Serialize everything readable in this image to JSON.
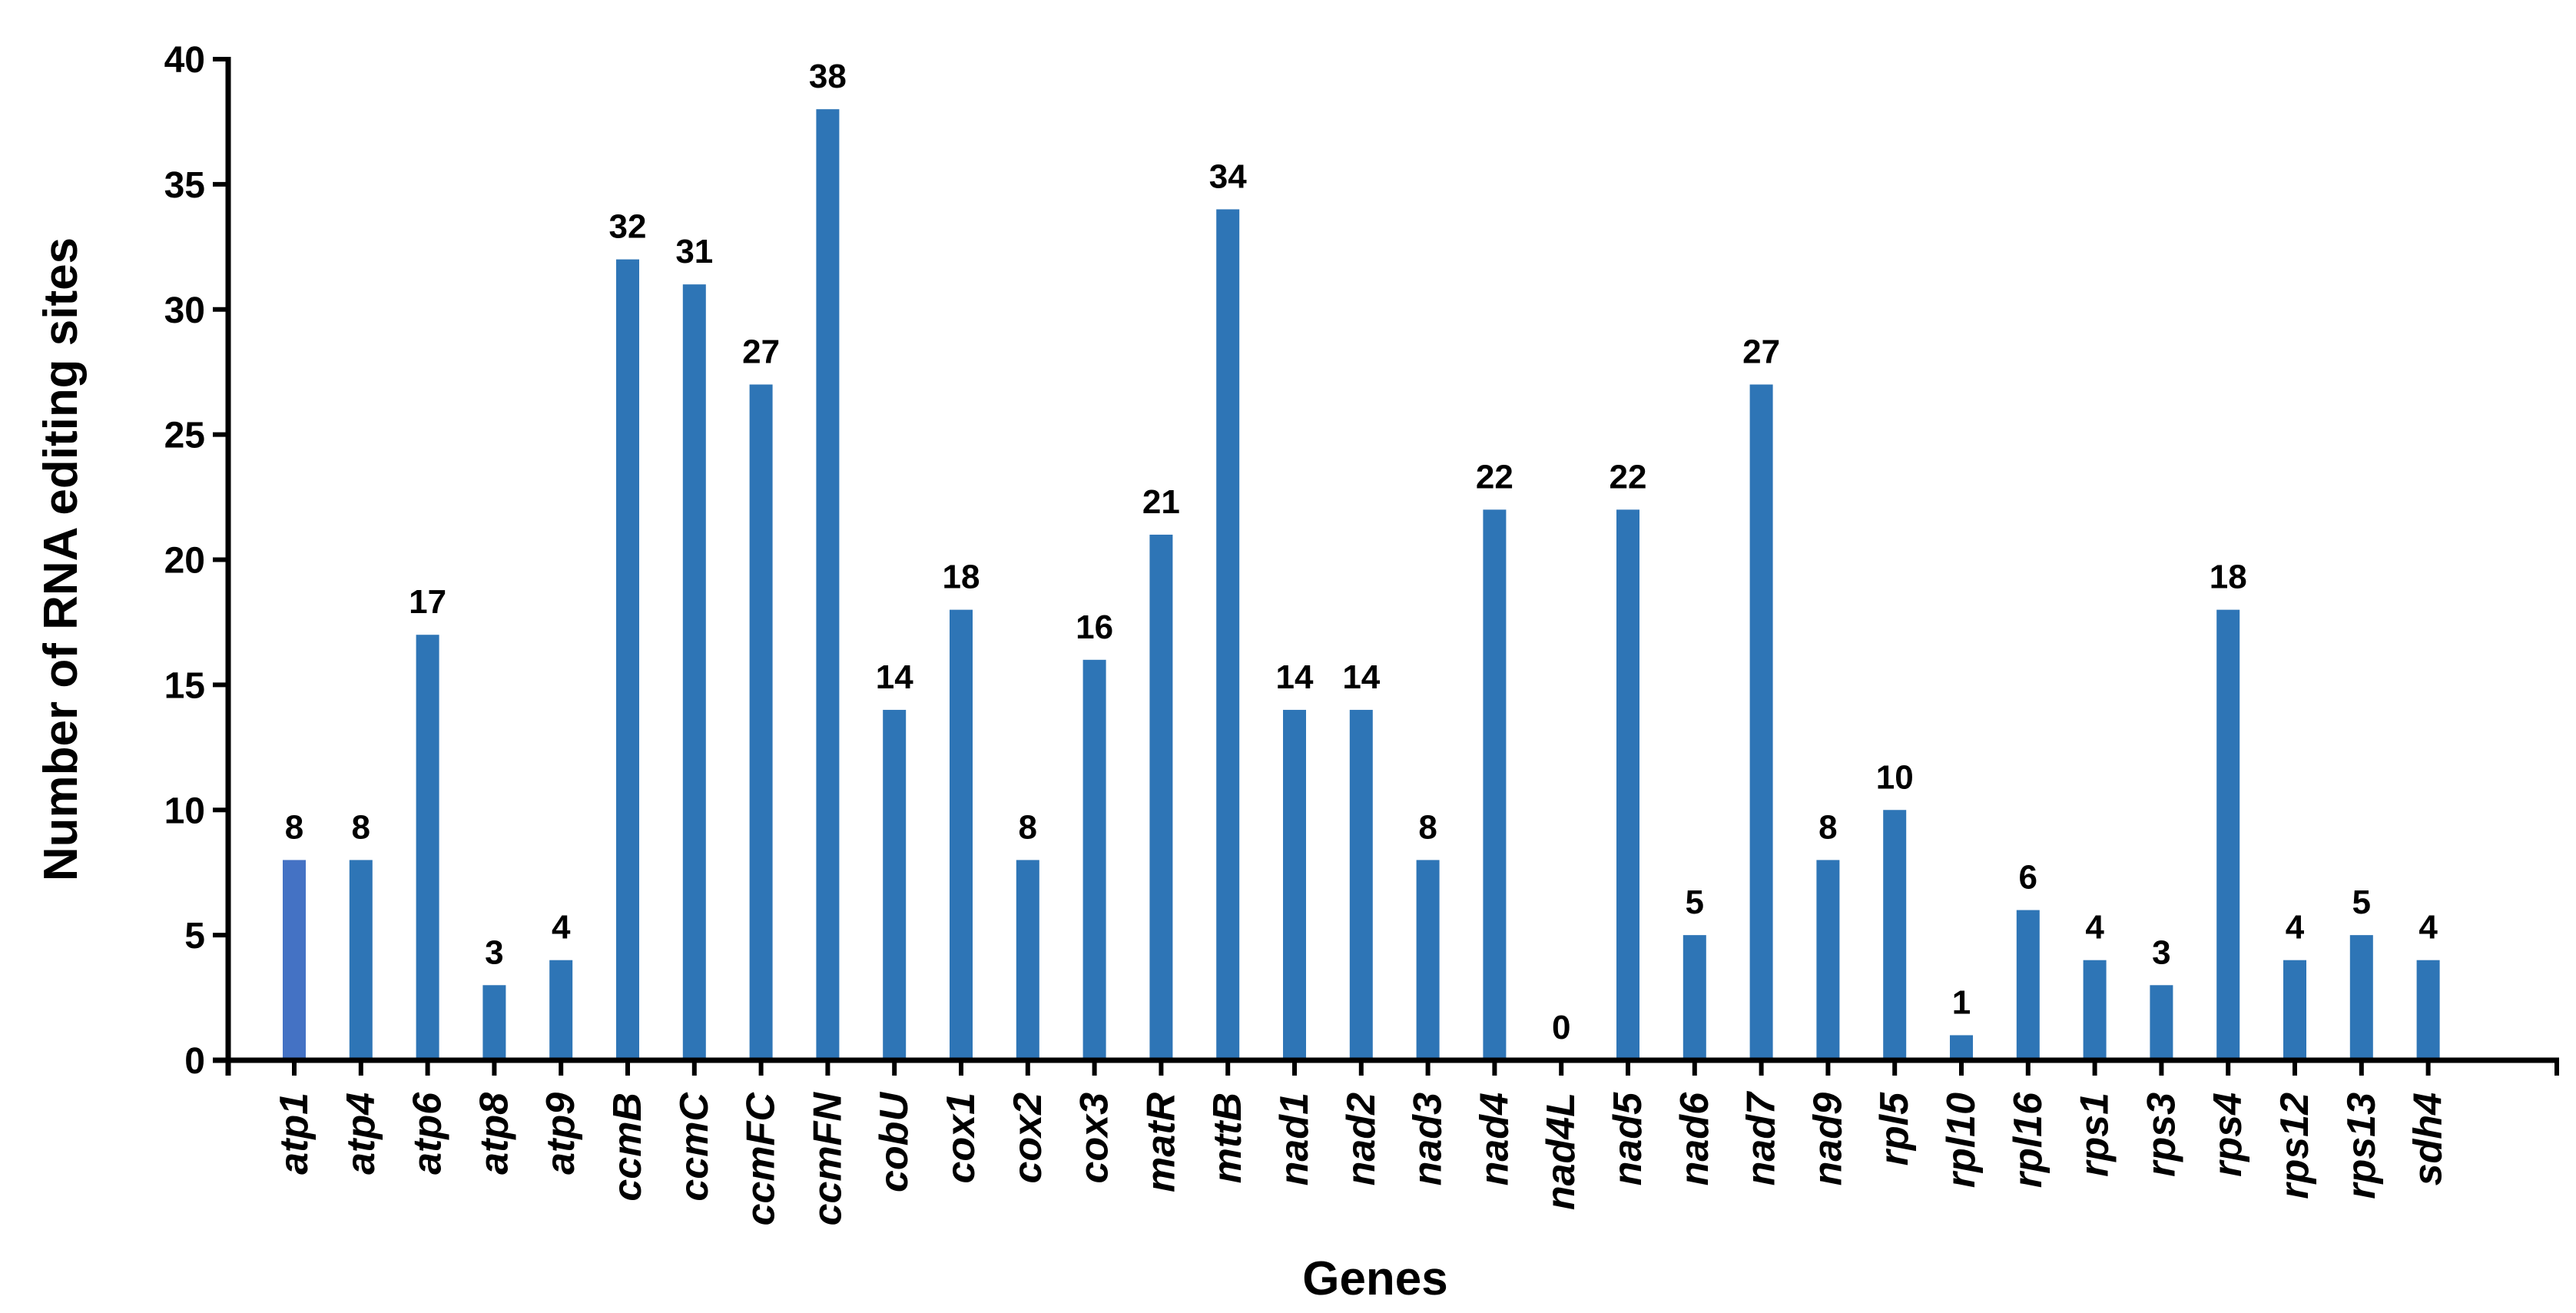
{
  "chart_data": {
    "type": "bar",
    "title": "",
    "xlabel": "Genes",
    "ylabel": "Number of RNA editing sites",
    "ylim": [
      0,
      40
    ],
    "yticks": [
      0,
      5,
      10,
      15,
      20,
      25,
      30,
      35,
      40
    ],
    "grid": false,
    "legend": "none",
    "categories": [
      "atp1",
      "atp4",
      "atp6",
      "atp8",
      "atp9",
      "ccmB",
      "ccmC",
      "ccmFC",
      "ccmFN",
      "cobU",
      "cox1",
      "cox2",
      "cox3",
      "matR",
      "mttB",
      "nad1",
      "nad2",
      "nad3",
      "nad4",
      "nad4L",
      "nad5",
      "nad6",
      "nad7",
      "nad9",
      "rpl5",
      "rpl10",
      "rpl16",
      "rps1",
      "rps3",
      "rps4",
      "rps12",
      "rps13",
      "sdh4"
    ],
    "values": [
      8,
      8,
      17,
      3,
      4,
      32,
      31,
      27,
      38,
      14,
      18,
      8,
      16,
      21,
      34,
      14,
      14,
      8,
      22,
      0,
      22,
      5,
      27,
      8,
      10,
      1,
      6,
      4,
      3,
      18,
      4,
      5,
      4
    ],
    "colors": {
      "bar": "#2E75B6",
      "first_bar": "#4472C4",
      "axis": "#000000"
    }
  }
}
